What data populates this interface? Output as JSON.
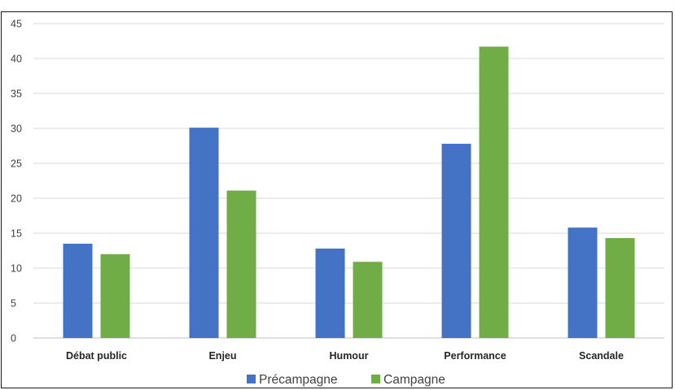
{
  "chart_data": {
    "type": "bar",
    "title": "",
    "xlabel": "",
    "ylabel": "",
    "ylim": [
      0,
      45
    ],
    "yticks": [
      0,
      5,
      10,
      15,
      20,
      25,
      30,
      35,
      40,
      45
    ],
    "grid": true,
    "legend_position": "bottom",
    "categories": [
      "Débat public",
      "Enjeu",
      "Humour",
      "Performance",
      "Scandale"
    ],
    "series": [
      {
        "name": "Précampagne",
        "color": "#4472C4",
        "values": [
          13.5,
          30.1,
          12.8,
          27.8,
          15.8
        ]
      },
      {
        "name": "Campagne",
        "color": "#70AD47",
        "values": [
          12.0,
          21.1,
          10.9,
          41.7,
          14.3
        ]
      }
    ]
  }
}
